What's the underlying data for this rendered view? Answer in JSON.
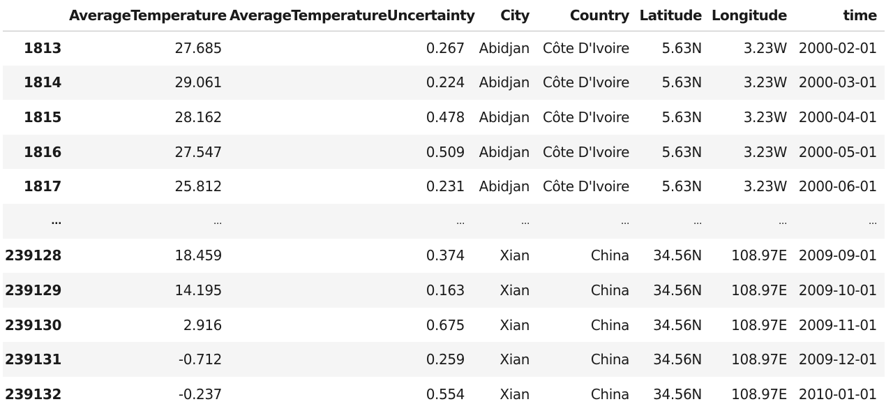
{
  "table": {
    "columns": [
      "",
      "AverageTemperature",
      "AverageTemperatureUncertainty",
      "City",
      "Country",
      "Latitude",
      "Longitude",
      "time"
    ],
    "rows": [
      {
        "index": "1813",
        "cells": [
          "27.685",
          "0.267",
          "Abidjan",
          "Côte D'Ivoire",
          "5.63N",
          "3.23W",
          "2000-02-01"
        ]
      },
      {
        "index": "1814",
        "cells": [
          "29.061",
          "0.224",
          "Abidjan",
          "Côte D'Ivoire",
          "5.63N",
          "3.23W",
          "2000-03-01"
        ]
      },
      {
        "index": "1815",
        "cells": [
          "28.162",
          "0.478",
          "Abidjan",
          "Côte D'Ivoire",
          "5.63N",
          "3.23W",
          "2000-04-01"
        ]
      },
      {
        "index": "1816",
        "cells": [
          "27.547",
          "0.509",
          "Abidjan",
          "Côte D'Ivoire",
          "5.63N",
          "3.23W",
          "2000-05-01"
        ]
      },
      {
        "index": "1817",
        "cells": [
          "25.812",
          "0.231",
          "Abidjan",
          "Côte D'Ivoire",
          "5.63N",
          "3.23W",
          "2000-06-01"
        ]
      },
      {
        "index": "...",
        "cells": [
          "...",
          "...",
          "...",
          "...",
          "...",
          "...",
          "..."
        ]
      },
      {
        "index": "239128",
        "cells": [
          "18.459",
          "0.374",
          "Xian",
          "China",
          "34.56N",
          "108.97E",
          "2009-09-01"
        ]
      },
      {
        "index": "239129",
        "cells": [
          "14.195",
          "0.163",
          "Xian",
          "China",
          "34.56N",
          "108.97E",
          "2009-10-01"
        ]
      },
      {
        "index": "239130",
        "cells": [
          "2.916",
          "0.675",
          "Xian",
          "China",
          "34.56N",
          "108.97E",
          "2009-11-01"
        ]
      },
      {
        "index": "239131",
        "cells": [
          "-0.712",
          "0.259",
          "Xian",
          "China",
          "34.56N",
          "108.97E",
          "2009-12-01"
        ]
      },
      {
        "index": "239132",
        "cells": [
          "-0.237",
          "0.554",
          "Xian",
          "China",
          "34.56N",
          "108.97E",
          "2010-01-01"
        ]
      }
    ]
  }
}
